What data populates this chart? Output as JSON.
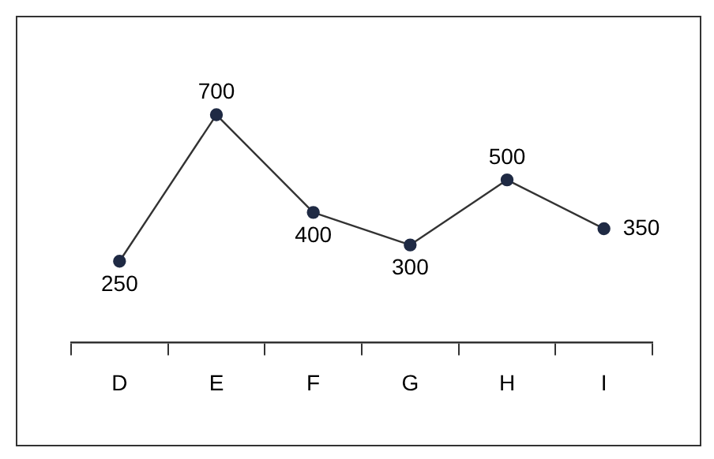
{
  "chart_data": {
    "type": "line",
    "categories": [
      "D",
      "E",
      "F",
      "G",
      "H",
      "I"
    ],
    "series": [
      {
        "color": "#1f2a44",
        "values": [
          250,
          700,
          400,
          300,
          500,
          350
        ]
      }
    ],
    "data_labels": true,
    "marker": "circle",
    "line_style": "solid",
    "legend": false,
    "grid": false,
    "tick_labels": "x"
  }
}
